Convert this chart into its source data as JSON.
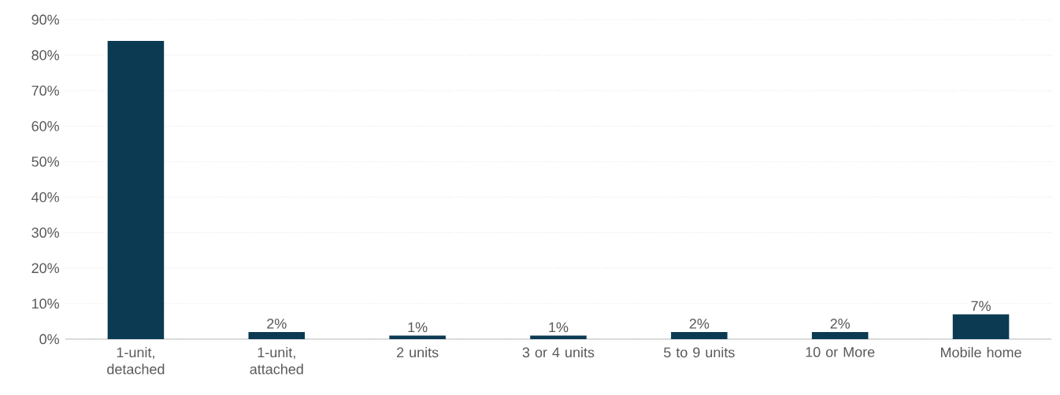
{
  "chart_data": {
    "type": "bar",
    "categories": [
      "1-unit, detached",
      "1-unit, attached",
      "2 units",
      "3 or 4 units",
      "5 to 9 units",
      "10 or More",
      "Mobile home"
    ],
    "values": [
      84,
      2,
      1,
      1,
      2,
      2,
      7
    ],
    "value_labels": [
      null,
      "2%",
      "1%",
      "1%",
      "2%",
      "2%",
      "7%"
    ],
    "color": "#0b3a52",
    "ylim": [
      0,
      90
    ],
    "yticks": [
      {
        "value": 0,
        "label": "0%"
      },
      {
        "value": 10,
        "label": "10%"
      },
      {
        "value": 20,
        "label": "20%"
      },
      {
        "value": 30,
        "label": "30%"
      },
      {
        "value": 40,
        "label": "40%"
      },
      {
        "value": 50,
        "label": "50%"
      },
      {
        "value": 60,
        "label": "60%"
      },
      {
        "value": 70,
        "label": "70%"
      },
      {
        "value": 80,
        "label": "80%"
      },
      {
        "value": 90,
        "label": "90%"
      }
    ],
    "grid": "y"
  }
}
